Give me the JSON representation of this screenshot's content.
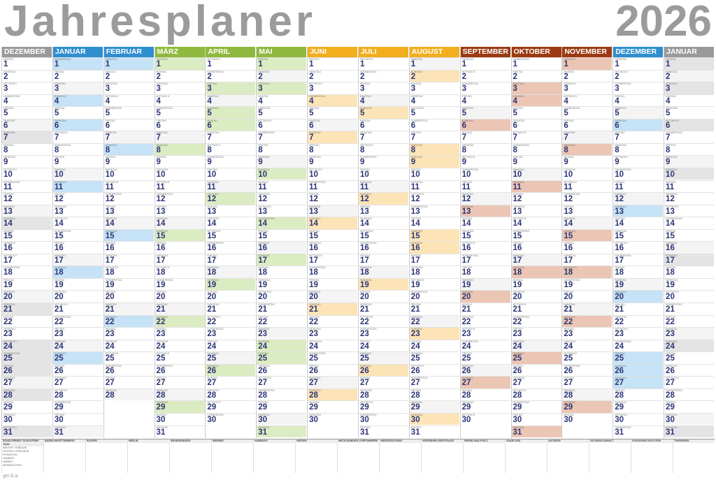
{
  "title": "Jahresplaner",
  "year": "2026",
  "weekdays": [
    "MONTAG",
    "DIENSTAG",
    "MITTWOCH",
    "DONNERSTAG",
    "FREITAG",
    "SAMSTAG",
    "SONNTAG"
  ],
  "months": [
    {
      "name": "DEZEMBER",
      "color": "#9a9a9a",
      "tint": "#e4e4e4",
      "days": 31,
      "start": 0
    },
    {
      "name": "JANUAR",
      "color": "#2f8ed0",
      "tint": "#c5e2f6",
      "days": 31,
      "start": 3
    },
    {
      "name": "FEBRUAR",
      "color": "#2f8ed0",
      "tint": "#c5e2f6",
      "days": 28,
      "start": 6
    },
    {
      "name": "MÄRZ",
      "color": "#8fb93e",
      "tint": "#dcecc2",
      "days": 31,
      "start": 6
    },
    {
      "name": "APRIL",
      "color": "#8fb93e",
      "tint": "#dcecc2",
      "days": 30,
      "start": 2
    },
    {
      "name": "MAI",
      "color": "#8fb93e",
      "tint": "#dcecc2",
      "days": 31,
      "start": 4
    },
    {
      "name": "JUNI",
      "color": "#f2ae1c",
      "tint": "#fde4b6",
      "days": 30,
      "start": 0
    },
    {
      "name": "JULI",
      "color": "#f2ae1c",
      "tint": "#fde4b6",
      "days": 31,
      "start": 2
    },
    {
      "name": "AUGUST",
      "color": "#f2ae1c",
      "tint": "#fde4b6",
      "days": 31,
      "start": 5
    },
    {
      "name": "SEPTEMBER",
      "color": "#9c3a12",
      "tint": "#ecc6b4",
      "days": 30,
      "start": 1
    },
    {
      "name": "OKTOBER",
      "color": "#9c3a12",
      "tint": "#ecc6b4",
      "days": 31,
      "start": 3
    },
    {
      "name": "NOVEMBER",
      "color": "#9c3a12",
      "tint": "#ecc6b4",
      "days": 30,
      "start": 6
    },
    {
      "name": "DEZEMBER",
      "color": "#2f8ed0",
      "tint": "#c5e2f6",
      "days": 31,
      "start": 1
    },
    {
      "name": "JANUAR",
      "color": "#9a9a9a",
      "tint": "#e4e4e4",
      "days": 31,
      "start": 4
    }
  ],
  "holidays": {
    "1-1": true,
    "1-6": true,
    "3-8": true,
    "4-3": true,
    "4-5": true,
    "4-6": true,
    "5-1": true,
    "5-14": true,
    "5-24": true,
    "5-25": true,
    "6-4": true,
    "8-8": true,
    "8-15": true,
    "10-3": true,
    "10-31": true,
    "11-1": true,
    "11-18": true,
    "12-25": true,
    "12-26": true,
    "0-24": true,
    "0-25": true,
    "0-26": true,
    "0-31": true,
    "13-1": true,
    "13-6": true
  },
  "footer": {
    "states": [
      "SCHULFERIEN / SCHULFREIE TAGE",
      "BADEN-WÜRTTEMBERG",
      "BAYERN",
      "BERLIN",
      "BRANDENBURG",
      "BREMEN",
      "HAMBURG",
      "HESSEN",
      "MECKLENBURG-VORPOMMERN",
      "NIEDERSACHSEN",
      "NORDRHEIN-WESTFALEN",
      "RHEINLAND-PFALZ",
      "SAARLAND",
      "SACHSEN",
      "SACHSEN-ANHALT",
      "SCHLESWIG-HOLSTEIN",
      "THÜRINGEN"
    ],
    "rows": [
      "WINTER / FEBRUAR",
      "OSTERN / FRÜHJAHR",
      "PFINGSTEN",
      "SOMMER",
      "HERBST",
      "WEIHNACHTEN"
    ]
  },
  "logo": "gm.b.a"
}
